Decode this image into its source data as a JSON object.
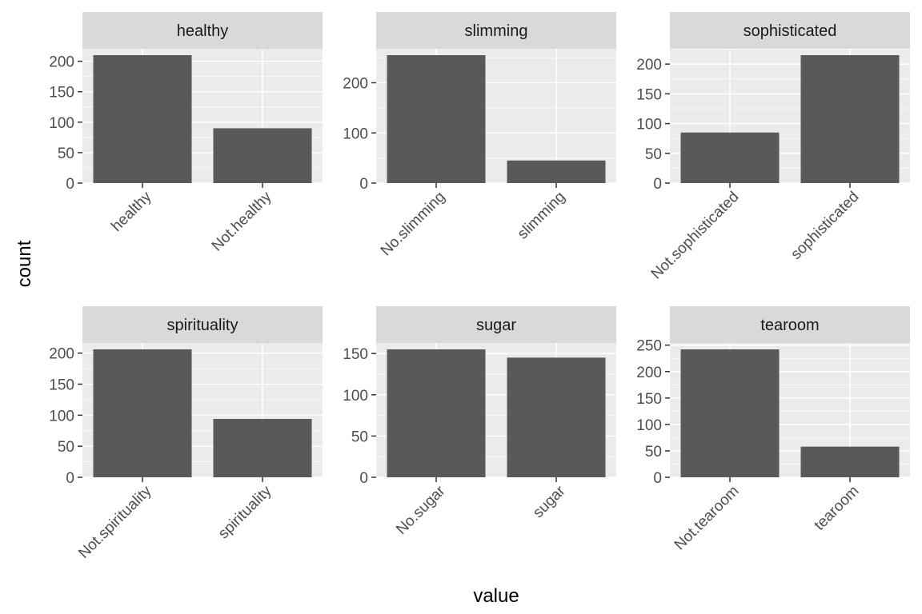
{
  "chart_data": {
    "type": "bar",
    "xlabel": "value",
    "ylabel": "count",
    "panels": [
      {
        "title": "healthy",
        "categories": [
          "healthy",
          "Not.healthy"
        ],
        "values": [
          210,
          90
        ],
        "yticks": [
          0,
          50,
          100,
          150,
          200
        ],
        "ylim": [
          0,
          220.5
        ]
      },
      {
        "title": "slimming",
        "categories": [
          "No.slimming",
          "slimming"
        ],
        "values": [
          255,
          45
        ],
        "yticks": [
          0,
          100,
          200
        ],
        "ylim": [
          0,
          267.75
        ]
      },
      {
        "title": "sophisticated",
        "categories": [
          "Not.sophisticated",
          "sophisticated"
        ],
        "values": [
          85,
          215
        ],
        "yticks": [
          0,
          50,
          100,
          150,
          200
        ],
        "ylim": [
          0,
          225.75
        ]
      },
      {
        "title": "spirituality",
        "categories": [
          "Not.spirituality",
          "spirituality"
        ],
        "values": [
          206,
          94
        ],
        "yticks": [
          0,
          50,
          100,
          150,
          200
        ],
        "ylim": [
          0,
          216.3
        ]
      },
      {
        "title": "sugar",
        "categories": [
          "No.sugar",
          "sugar"
        ],
        "values": [
          155,
          145
        ],
        "yticks": [
          0,
          50,
          100,
          150
        ],
        "ylim": [
          0,
          162.75
        ]
      },
      {
        "title": "tearoom",
        "categories": [
          "Not.tearoom",
          "tearoom"
        ],
        "values": [
          242,
          58
        ],
        "yticks": [
          0,
          50,
          100,
          150,
          200,
          250
        ],
        "ylim": [
          0,
          254.1
        ]
      }
    ]
  },
  "colors": {
    "panel_bg": "#ebebeb",
    "strip_bg": "#d9d9d9",
    "bar": "#595959",
    "grid": "#ffffff",
    "tick": "#333333"
  }
}
